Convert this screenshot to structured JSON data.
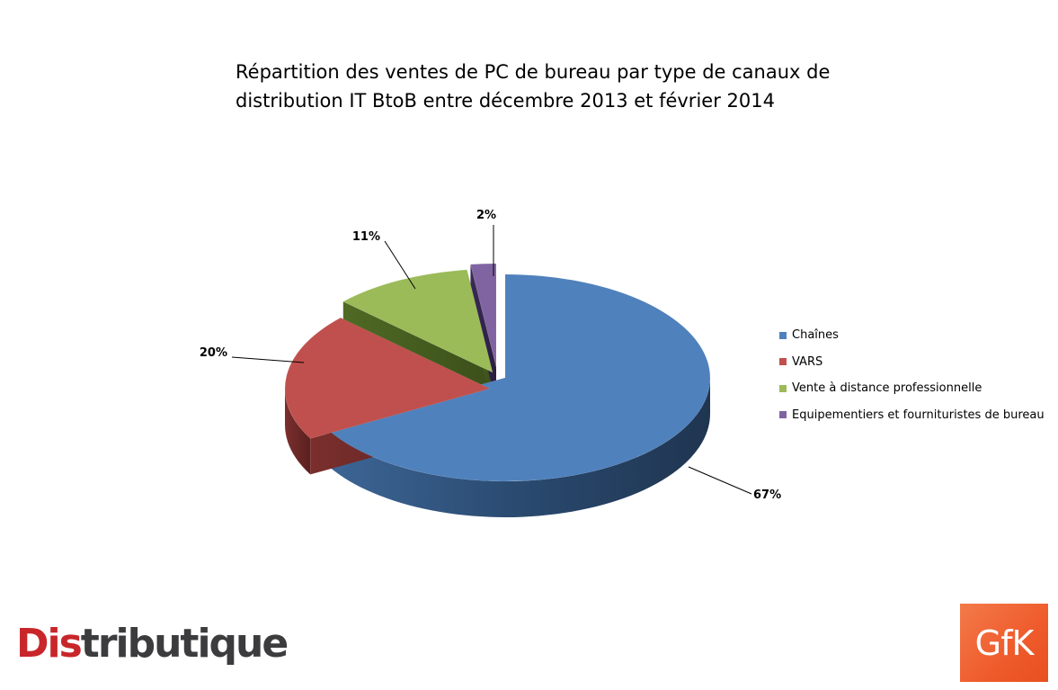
{
  "title": {
    "line1": "Répartition des ventes de PC de bureau par type de canaux de",
    "line2": "distribution IT BtoB entre décembre 2013 et février 2014"
  },
  "chart_data": {
    "type": "pie",
    "title": "Répartition des ventes de PC de bureau par type de canaux de distribution IT BtoB entre décembre 2013 et février 2014",
    "style": "3d-exploded",
    "legend_position": "right",
    "categories": [
      "Chaînes",
      "VARS",
      "Vente à distance professionnelle",
      "Equipementiers et fournituristes de bureau"
    ],
    "values": [
      67,
      20,
      11,
      2
    ],
    "labels": [
      "67%",
      "20%",
      "11%",
      "2%"
    ],
    "colors": [
      "#4f81bd",
      "#c0504d",
      "#9bbb59",
      "#8064a2"
    ]
  },
  "logos": {
    "distributique": {
      "text": "Distributique",
      "accent": "#c8262a"
    },
    "gfk": {
      "text": "GfK",
      "color": "#ef5b2c"
    }
  }
}
